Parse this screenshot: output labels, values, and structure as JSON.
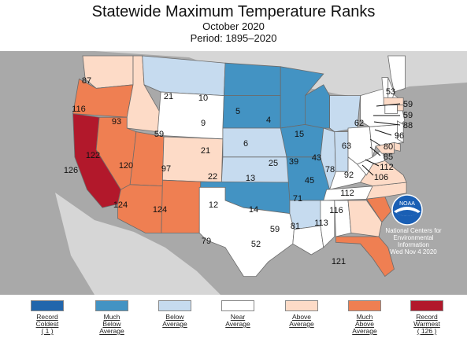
{
  "title": "Statewide Maximum Temperature Ranks",
  "subtitle": "October 2020",
  "period": "Period: 1895–2020",
  "colors": {
    "record_coldest": "#2166ac",
    "much_below": "#4393c3",
    "below": "#c6dbef",
    "near": "#ffffff",
    "above": "#fddbc7",
    "much_above": "#ef7f52",
    "record_warmest": "#b2182b",
    "background": "#a9a9a9",
    "border": "#6b6b6b"
  },
  "states": [
    {
      "abbr": "WA",
      "rank": "87",
      "cat": "above"
    },
    {
      "abbr": "OR",
      "rank": "116",
      "cat": "much_above"
    },
    {
      "abbr": "CA",
      "rank": "126",
      "cat": "record_warmest"
    },
    {
      "abbr": "ID",
      "rank": "93",
      "cat": "above"
    },
    {
      "abbr": "NV",
      "rank": "122",
      "cat": "much_above"
    },
    {
      "abbr": "MT",
      "rank": "21",
      "cat": "below"
    },
    {
      "abbr": "WY",
      "rank": "59",
      "cat": "near"
    },
    {
      "abbr": "UT",
      "rank": "120",
      "cat": "much_above"
    },
    {
      "abbr": "AZ",
      "rank": "124",
      "cat": "much_above"
    },
    {
      "abbr": "CO",
      "rank": "97",
      "cat": "above"
    },
    {
      "abbr": "NM",
      "rank": "124",
      "cat": "much_above"
    },
    {
      "abbr": "ND",
      "rank": "10",
      "cat": "much_below"
    },
    {
      "abbr": "SD",
      "rank": "9",
      "cat": "much_below"
    },
    {
      "abbr": "NE",
      "rank": "21",
      "cat": "below"
    },
    {
      "abbr": "KS",
      "rank": "22",
      "cat": "below"
    },
    {
      "abbr": "OK",
      "rank": "12",
      "cat": "much_below"
    },
    {
      "abbr": "TX",
      "rank": "79",
      "cat": "near"
    },
    {
      "abbr": "MN",
      "rank": "5",
      "cat": "much_below"
    },
    {
      "abbr": "IA",
      "rank": "6",
      "cat": "much_below"
    },
    {
      "abbr": "MO",
      "rank": "13",
      "cat": "much_below"
    },
    {
      "abbr": "AR",
      "rank": "14",
      "cat": "below"
    },
    {
      "abbr": "LA",
      "rank": "52",
      "cat": "near"
    },
    {
      "abbr": "WI",
      "rank": "4",
      "cat": "much_below"
    },
    {
      "abbr": "IL",
      "rank": "25",
      "cat": "below"
    },
    {
      "abbr": "MI",
      "rank": "15",
      "cat": "below"
    },
    {
      "abbr": "IN",
      "rank": "39",
      "cat": "below"
    },
    {
      "abbr": "OH",
      "rank": "43",
      "cat": "near"
    },
    {
      "abbr": "KY",
      "rank": "45",
      "cat": "near"
    },
    {
      "abbr": "TN",
      "rank": "71",
      "cat": "near"
    },
    {
      "abbr": "MS",
      "rank": "59",
      "cat": "near"
    },
    {
      "abbr": "AL",
      "rank": "81",
      "cat": "near"
    },
    {
      "abbr": "GA",
      "rank": "113",
      "cat": "above"
    },
    {
      "abbr": "FL",
      "rank": "121",
      "cat": "much_above"
    },
    {
      "abbr": "SC",
      "rank": "116",
      "cat": "much_above"
    },
    {
      "abbr": "NC",
      "rank": "112",
      "cat": "above"
    },
    {
      "abbr": "VA",
      "rank": "92",
      "cat": "above"
    },
    {
      "abbr": "WV",
      "rank": "78",
      "cat": "near"
    },
    {
      "abbr": "PA",
      "rank": "63",
      "cat": "near"
    },
    {
      "abbr": "NY",
      "rank": "62",
      "cat": "near"
    },
    {
      "abbr": "ME",
      "rank": "53",
      "cat": "near"
    },
    {
      "abbr": "NH",
      "rank": "59",
      "cat": "near"
    },
    {
      "abbr": "VT",
      "rank": "59",
      "cat": "near"
    },
    {
      "abbr": "MA",
      "rank": "88",
      "cat": "above"
    },
    {
      "abbr": "RI",
      "rank": "96",
      "cat": "above"
    },
    {
      "abbr": "CT",
      "rank": "80",
      "cat": "near"
    },
    {
      "abbr": "NJ",
      "rank": "85",
      "cat": "near"
    },
    {
      "abbr": "DE",
      "rank": "112",
      "cat": "above"
    },
    {
      "abbr": "MD",
      "rank": "106",
      "cat": "above"
    }
  ],
  "noaa": {
    "line1": "National Centers for",
    "line2": "Environmental",
    "line3": "Information",
    "line4": "Wed Nov  4 2020",
    "logo_text": "NOAA"
  },
  "legend": [
    {
      "lines": [
        "Record",
        "Coldest",
        "( 1 )"
      ],
      "cat": "record_coldest"
    },
    {
      "lines": [
        "Much",
        "Below",
        "Average"
      ],
      "cat": "much_below"
    },
    {
      "lines": [
        "Below",
        "Average"
      ],
      "cat": "below"
    },
    {
      "lines": [
        "Near",
        "Average"
      ],
      "cat": "near"
    },
    {
      "lines": [
        "Above",
        "Average"
      ],
      "cat": "above"
    },
    {
      "lines": [
        "Much",
        "Above",
        "Average"
      ],
      "cat": "much_above"
    },
    {
      "lines": [
        "Record",
        "Warmest",
        "( 126 )"
      ],
      "cat": "record_warmest"
    }
  ]
}
